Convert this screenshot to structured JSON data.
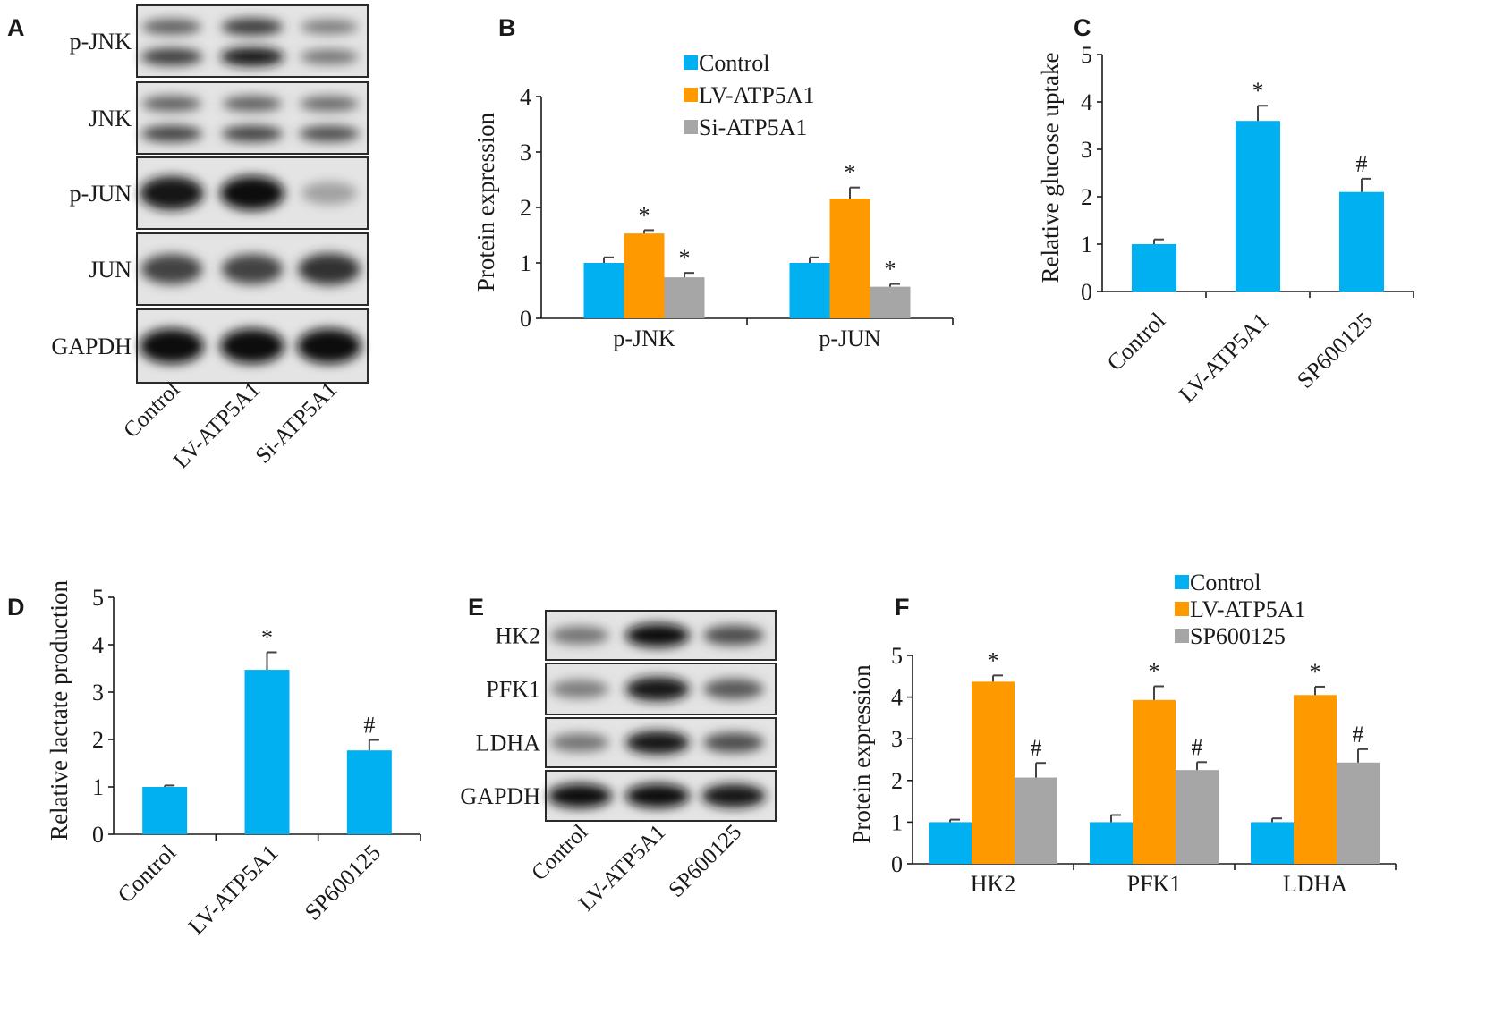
{
  "colors": {
    "control": "#00b0f0",
    "treatment": "#ff9900",
    "third": "#a6a6a6",
    "axis": "#1a1a1a",
    "blot_frame": "#2a2a2a"
  },
  "blots": [
    {
      "panel": "A",
      "rows": [
        {
          "label": "p-JNK",
          "bands": [
            {
              "intensity": [
                0.55,
                0.75,
                0.4
              ],
              "shape": "double-top"
            },
            {
              "intensity": [
                0.75,
                0.95,
                0.45
              ]
            }
          ]
        },
        {
          "label": "JNK",
          "bands": [
            {
              "intensity": [
                0.55,
                0.55,
                0.5
              ]
            },
            {
              "intensity": [
                0.7,
                0.7,
                0.65
              ]
            }
          ]
        },
        {
          "label": "p-JUN",
          "bands": [
            {
              "intensity": [
                0.95,
                1.0,
                0.2
              ]
            }
          ]
        },
        {
          "label": "JUN",
          "bands": [
            {
              "intensity": [
                0.7,
                0.7,
                0.8
              ]
            }
          ]
        },
        {
          "label": "GAPDH",
          "bands": [
            {
              "intensity": [
                1.0,
                1.0,
                1.0
              ]
            }
          ]
        }
      ],
      "lanes": [
        "Control",
        "LV-ATP5A1",
        "Si-ATP5A1"
      ]
    },
    {
      "panel": "E",
      "rows": [
        {
          "label": "HK2",
          "bands": [
            {
              "intensity": [
                0.45,
                1.0,
                0.65
              ]
            }
          ]
        },
        {
          "label": "PFK1",
          "bands": [
            {
              "intensity": [
                0.4,
                0.95,
                0.6
              ]
            }
          ]
        },
        {
          "label": "LDHA",
          "bands": [
            {
              "intensity": [
                0.45,
                0.95,
                0.65
              ]
            }
          ]
        },
        {
          "label": "GAPDH",
          "bands": [
            {
              "intensity": [
                1.0,
                1.0,
                0.95
              ]
            }
          ]
        }
      ],
      "lanes": [
        "Control",
        "LV-ATP5A1",
        "SP600125"
      ]
    }
  ],
  "chart_data": [
    {
      "panel": "B",
      "type": "bar",
      "categories": [
        "p-JNK",
        "p-JUN"
      ],
      "series": [
        {
          "name": "Control",
          "color_key": "control",
          "values": [
            1.0,
            1.0
          ],
          "errors": [
            0.1,
            0.1
          ],
          "marks": [
            "",
            ""
          ]
        },
        {
          "name": "LV-ATP5A1",
          "color_key": "treatment",
          "values": [
            1.53,
            2.16
          ],
          "errors": [
            0.06,
            0.2
          ],
          "marks": [
            "*",
            "*"
          ]
        },
        {
          "name": "Si-ATP5A1",
          "color_key": "third",
          "values": [
            0.74,
            0.57
          ],
          "errors": [
            0.08,
            0.05
          ],
          "marks": [
            "*",
            "*"
          ]
        }
      ],
      "ylabel": "Protein expression",
      "ylim": [
        0,
        4
      ],
      "yticks": [
        0,
        1,
        2,
        3,
        4
      ],
      "legend": "top"
    },
    {
      "panel": "C",
      "type": "bar",
      "categories": [
        "Control",
        "LV-ATP5A1",
        "SP600125"
      ],
      "series": [
        {
          "color_key": "control",
          "values": [
            1.0,
            3.6,
            2.1
          ],
          "errors": [
            0.1,
            0.32,
            0.28
          ],
          "marks": [
            "",
            "*",
            "#"
          ]
        }
      ],
      "ylabel": "Relative glucose uptake",
      "ylim": [
        0,
        5
      ],
      "yticks": [
        0,
        1,
        2,
        3,
        4,
        5
      ]
    },
    {
      "panel": "D",
      "type": "bar",
      "categories": [
        "Control",
        "LV-ATP5A1",
        "SP600125"
      ],
      "series": [
        {
          "color_key": "control",
          "values": [
            1.0,
            3.47,
            1.77
          ],
          "errors": [
            0.03,
            0.37,
            0.22
          ],
          "marks": [
            "",
            "*",
            "#"
          ]
        }
      ],
      "ylabel": "Relative lactate production",
      "ylim": [
        0,
        5
      ],
      "yticks": [
        0,
        1,
        2,
        3,
        4,
        5
      ]
    },
    {
      "panel": "F",
      "type": "bar",
      "categories": [
        "HK2",
        "PFK1",
        "LDHA"
      ],
      "series": [
        {
          "name": "Control",
          "color_key": "control",
          "values": [
            1.0,
            1.0,
            1.0
          ],
          "errors": [
            0.06,
            0.17,
            0.09
          ],
          "marks": [
            "",
            "",
            ""
          ]
        },
        {
          "name": "LV-ATP5A1",
          "color_key": "treatment",
          "values": [
            4.37,
            3.93,
            4.05
          ],
          "errors": [
            0.15,
            0.33,
            0.2
          ],
          "marks": [
            "*",
            "*",
            "*"
          ]
        },
        {
          "name": "SP600125",
          "color_key": "third",
          "values": [
            2.07,
            2.25,
            2.43
          ],
          "errors": [
            0.35,
            0.19,
            0.32
          ],
          "marks": [
            "#",
            "#",
            "#"
          ]
        }
      ],
      "ylabel": "Protein expression",
      "ylim": [
        0,
        5
      ],
      "yticks": [
        0,
        1,
        2,
        3,
        4,
        5
      ],
      "legend": "top-right"
    }
  ]
}
